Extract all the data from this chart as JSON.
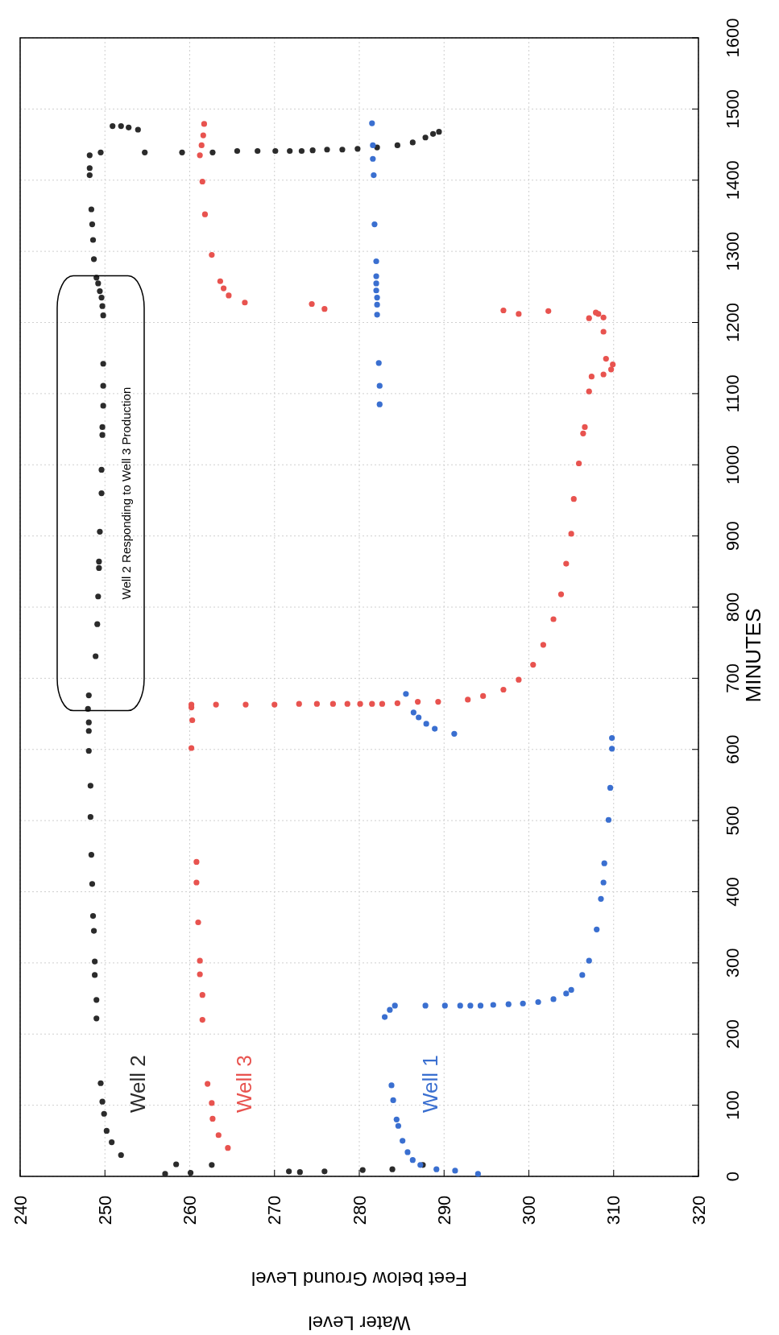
{
  "chart_data": {
    "type": "scatter",
    "xlabel": "Water Level\nFeet below Ground Level",
    "ylabel": "MINUTES",
    "xlim": [
      240,
      320
    ],
    "ylim": [
      0,
      1600
    ],
    "xticks": [
      240,
      250,
      260,
      270,
      280,
      290,
      300,
      310,
      320
    ],
    "yticks": [
      0,
      100,
      200,
      300,
      400,
      500,
      600,
      700,
      800,
      900,
      1000,
      1100,
      1200,
      1300,
      1400,
      1500,
      1600
    ],
    "grid": true,
    "marker": "circle",
    "annotations": [
      {
        "text": "Well 2 Responding to Well 3 Production",
        "x": 249.5,
        "y": 960
      }
    ],
    "series": [
      {
        "name": "Well 2",
        "color": "#2b2b2b",
        "values": [
          3.5,
          17,
          5,
          16,
          7,
          6,
          7,
          9,
          10,
          16,
          30,
          48,
          64,
          88,
          105,
          131,
          222,
          248,
          283,
          302,
          345,
          366,
          411,
          452,
          505,
          549,
          598,
          626,
          638,
          657,
          676,
          731,
          776,
          815,
          855,
          864,
          906,
          960,
          993,
          1042,
          1053,
          1083,
          1111,
          1142,
          1210,
          1223,
          1235,
          1244,
          1255,
          1263,
          1289,
          1316,
          1338,
          1359,
          1407,
          1417,
          1435,
          1439,
          1476,
          1476,
          1474,
          1471,
          1439,
          1439,
          1439,
          1441,
          1441,
          1441,
          1441,
          1441,
          1442,
          1443,
          1443,
          1444,
          1446,
          1449,
          1453,
          1460,
          1465,
          1468
        ],
        "x": [
          257.1,
          258.4,
          260.1,
          262.6,
          271.7,
          273,
          275.9,
          280.4,
          283.9,
          287.5,
          251.9,
          250.8,
          250.2,
          249.9,
          249.7,
          249.5,
          249,
          249,
          248.8,
          248.8,
          248.7,
          248.6,
          248.5,
          248.4,
          248.3,
          248.3,
          248.1,
          248.1,
          248.1,
          248,
          248.1,
          248.9,
          249.1,
          249.2,
          249.3,
          249.3,
          249.4,
          249.6,
          249.6,
          249.7,
          249.7,
          249.8,
          249.8,
          249.8,
          249.8,
          249.7,
          249.6,
          249.4,
          249.2,
          249,
          248.7,
          248.6,
          248.5,
          248.4,
          248.2,
          248.2,
          248.2,
          249.5,
          250.9,
          251.9,
          252.8,
          253.9,
          254.7,
          259.1,
          262.7,
          265.6,
          268,
          270.1,
          271.8,
          273.2,
          274.5,
          276.2,
          278,
          279.8,
          282.1,
          284.5,
          286.3,
          287.8,
          288.7,
          289.4
        ]
      },
      {
        "name": "Well 3",
        "color": "#e8534f",
        "values": [
          40,
          58,
          81,
          103,
          130,
          220,
          255,
          284,
          303,
          357,
          413,
          442,
          602,
          641,
          659,
          663,
          663,
          663,
          663,
          664,
          664,
          664,
          664,
          664,
          664,
          664,
          665,
          667,
          667,
          670,
          675,
          684,
          698,
          719,
          747,
          783,
          818,
          861,
          903,
          952,
          1002,
          1044,
          1053,
          1103,
          1124,
          1127,
          1134,
          1141,
          1149,
          1187,
          1207,
          1212,
          1214,
          1206,
          1217,
          1212,
          1216,
          1219,
          1226,
          1228,
          1238,
          1248,
          1258,
          1295,
          1352,
          1398,
          1435,
          1449,
          1463,
          1479
        ],
        "x": [
          264.5,
          263.4,
          262.7,
          262.6,
          262.1,
          261.5,
          261.5,
          261.2,
          261.2,
          261,
          260.8,
          260.8,
          260.2,
          260.3,
          260.2,
          260.2,
          263.1,
          266.6,
          270,
          272.9,
          275,
          276.9,
          278.6,
          280.1,
          281.5,
          282.7,
          284.5,
          286.9,
          289.3,
          292.8,
          294.6,
          297,
          298.8,
          300.5,
          301.7,
          302.9,
          303.8,
          304.4,
          305,
          305.3,
          305.9,
          306.4,
          306.6,
          307.1,
          307.4,
          308.8,
          309.7,
          309.9,
          309.1,
          308.8,
          308.8,
          308.2,
          307.9,
          307.1,
          297,
          298.8,
          302.3,
          275.9,
          274.4,
          266.5,
          264.6,
          264,
          263.6,
          262.6,
          261.8,
          261.5,
          261.2,
          261.4,
          261.6,
          261.7
        ]
      },
      {
        "name": "Well 1",
        "color": "#3a6fd0",
        "values": [
          3.5,
          8,
          10,
          16,
          23,
          34,
          50,
          71,
          80,
          107,
          128,
          224,
          234,
          240,
          240,
          240,
          240,
          240,
          240,
          241,
          242,
          243,
          245,
          249,
          257,
          262,
          283,
          303,
          347,
          390,
          413,
          440,
          501,
          546,
          601,
          616,
          622,
          629,
          636,
          645,
          652,
          678,
          1085,
          1111,
          1143,
          1211,
          1225,
          1235,
          1245,
          1255,
          1265,
          1286,
          1338,
          1407,
          1430,
          1449,
          1480
        ],
        "x": [
          294,
          291.3,
          289.1,
          287.2,
          286.3,
          285.7,
          285.1,
          284.6,
          284.4,
          284,
          283.8,
          283,
          283.6,
          284.2,
          287.8,
          290.1,
          291.9,
          293.1,
          294.3,
          295.8,
          297.6,
          299.3,
          301.1,
          302.9,
          304.4,
          305,
          306.3,
          307.1,
          308,
          308.5,
          308.8,
          308.9,
          309.4,
          309.6,
          309.8,
          309.8,
          291.2,
          288.9,
          287.9,
          287,
          286.4,
          285.5,
          282.4,
          282.4,
          282.3,
          282.1,
          282.1,
          282.1,
          282,
          282,
          282,
          282,
          281.8,
          281.7,
          281.6,
          281.6,
          281.5
        ]
      }
    ]
  }
}
